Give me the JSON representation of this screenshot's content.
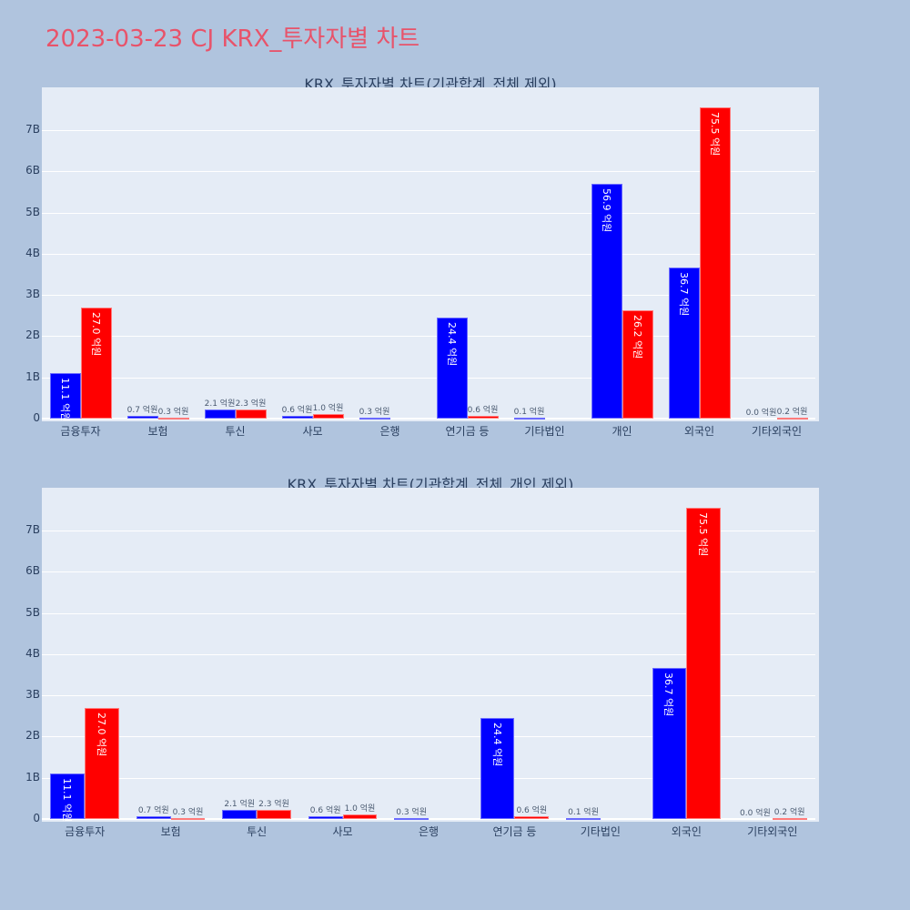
{
  "page": {
    "title": "2023-03-23 CJ KRX_투자자별 차트"
  },
  "legend_colors": {
    "series1": "#0000ff",
    "series2": "#ff0000"
  },
  "chart_data": [
    {
      "type": "bar",
      "title": "KRX_투자자별 차트(기관합계_전체 제외)",
      "xlabel": "",
      "ylabel": "",
      "ylim": [
        0,
        8000000000
      ],
      "yticks": [
        "0",
        "1B",
        "2B",
        "3B",
        "4B",
        "5B",
        "6B",
        "7B"
      ],
      "grid": true,
      "categories": [
        "금융투자",
        "보험",
        "투신",
        "사모",
        "은행",
        "연기금 등",
        "기타법인",
        "개인",
        "외국인",
        "기타외국인"
      ],
      "series": [
        {
          "name": "blue",
          "color": "#0000ff",
          "values": [
            11.1,
            0.7,
            2.1,
            0.6,
            0.3,
            24.4,
            0.1,
            56.9,
            36.7,
            0.0
          ],
          "labels": [
            "11.1 억원",
            "0.7 억원",
            "2.1 억원",
            "0.6 억원",
            "0.3 억원",
            "24.4 억원",
            "0.1 억원",
            "56.9 억원",
            "36.7 억원",
            "0.0 억원"
          ]
        },
        {
          "name": "red",
          "color": "#ff0000",
          "values": [
            27.0,
            0.3,
            2.3,
            1.0,
            0.0,
            0.6,
            0.0,
            26.2,
            75.5,
            0.2
          ],
          "labels": [
            "27.0 억원",
            "0.3 억원",
            "2.3 억원",
            "1.0 억원",
            "",
            "0.6 억원",
            "",
            "26.2 억원",
            "75.5 억원",
            "0.2 억원"
          ]
        }
      ],
      "unit": "억원"
    },
    {
      "type": "bar",
      "title": "KRX_투자자별 차트(기관합계_전체_개인 제외)",
      "xlabel": "",
      "ylabel": "",
      "ylim": [
        0,
        8000000000
      ],
      "yticks": [
        "0",
        "1B",
        "2B",
        "3B",
        "4B",
        "5B",
        "6B",
        "7B"
      ],
      "grid": true,
      "categories": [
        "금융투자",
        "보험",
        "투신",
        "사모",
        "은행",
        "연기금 등",
        "기타법인",
        "외국인",
        "기타외국인"
      ],
      "series": [
        {
          "name": "blue",
          "color": "#0000ff",
          "values": [
            11.1,
            0.7,
            2.1,
            0.6,
            0.3,
            24.4,
            0.1,
            36.7,
            0.0
          ],
          "labels": [
            "11.1 억원",
            "0.7 억원",
            "2.1 억원",
            "0.6 억원",
            "0.3 억원",
            "24.4 억원",
            "0.1 억원",
            "36.7 억원",
            "0.0 억원"
          ]
        },
        {
          "name": "red",
          "color": "#ff0000",
          "values": [
            27.0,
            0.3,
            2.3,
            1.0,
            0.0,
            0.6,
            0.0,
            75.5,
            0.2
          ],
          "labels": [
            "27.0 억원",
            "0.3 억원",
            "2.3 억원",
            "1.0 억원",
            "",
            "0.6 억원",
            "",
            "75.5 억원",
            "0.2 억원"
          ]
        }
      ],
      "unit": "억원"
    }
  ]
}
